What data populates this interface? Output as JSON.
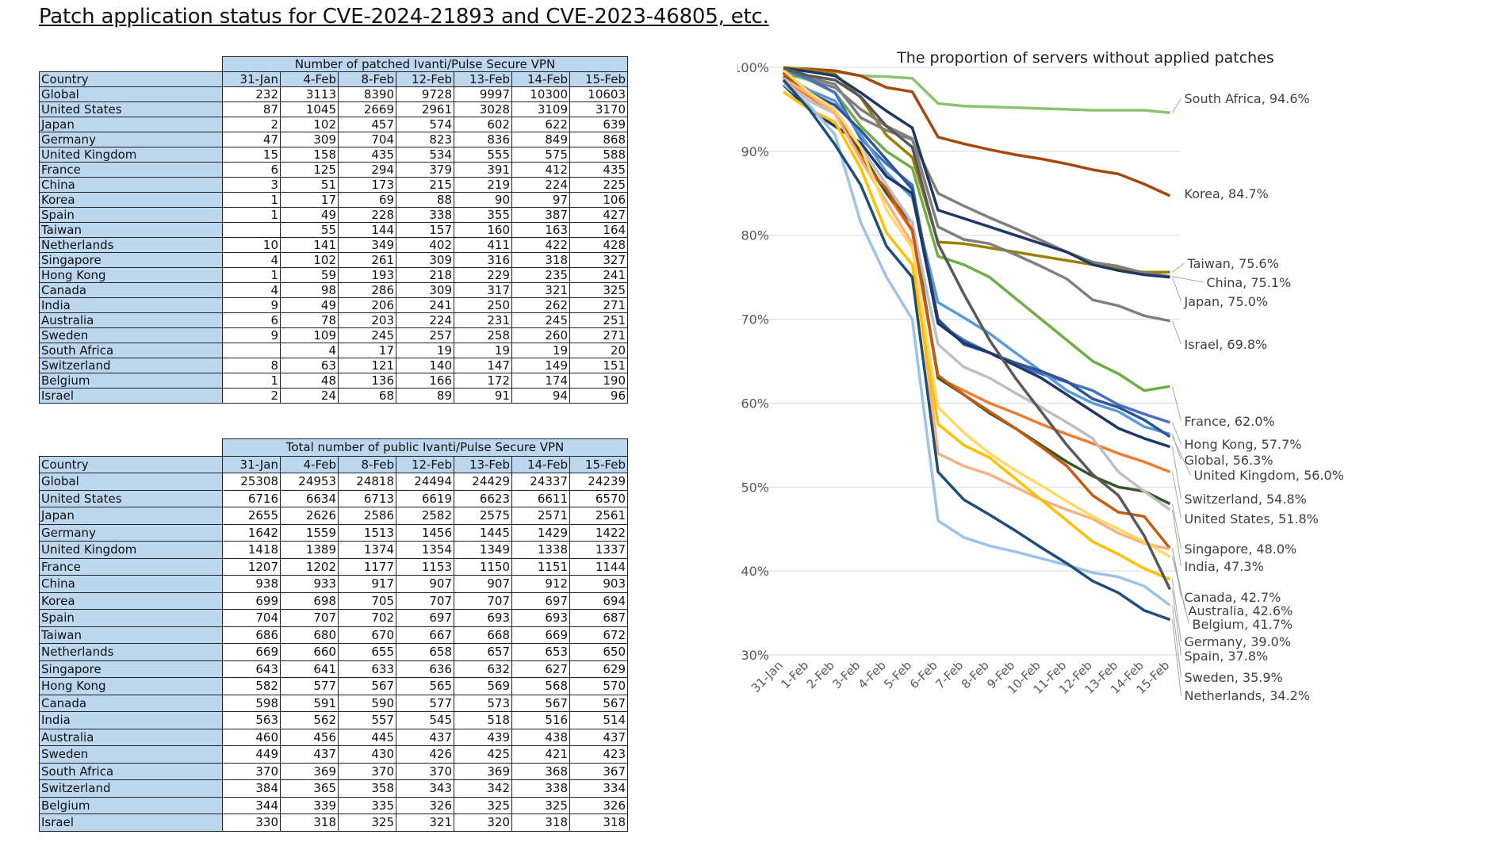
{
  "page_title": "Patch application status for CVE-2024-21893 and CVE-2023-46805, etc.",
  "tables": [
    {
      "caption": "Number of patched Ivanti/Pulse Secure VPN",
      "header": [
        "Country",
        "31-Jan",
        "4-Feb",
        "8-Feb",
        "12-Feb",
        "13-Feb",
        "14-Feb",
        "15-Feb"
      ],
      "rows": [
        [
          "Global",
          "232",
          "3113",
          "8390",
          "9728",
          "9997",
          "10300",
          "10603"
        ],
        [
          "United States",
          "87",
          "1045",
          "2669",
          "2961",
          "3028",
          "3109",
          "3170"
        ],
        [
          "Japan",
          "2",
          "102",
          "457",
          "574",
          "602",
          "622",
          "639"
        ],
        [
          "Germany",
          "47",
          "309",
          "704",
          "823",
          "836",
          "849",
          "868"
        ],
        [
          "United Kingdom",
          "15",
          "158",
          "435",
          "534",
          "555",
          "575",
          "588"
        ],
        [
          "France",
          "6",
          "125",
          "294",
          "379",
          "391",
          "412",
          "435"
        ],
        [
          "China",
          "3",
          "51",
          "173",
          "215",
          "219",
          "224",
          "225"
        ],
        [
          "Korea",
          "1",
          "17",
          "69",
          "88",
          "90",
          "97",
          "106"
        ],
        [
          "Spain",
          "1",
          "49",
          "228",
          "338",
          "355",
          "387",
          "427"
        ],
        [
          "Taiwan",
          "",
          "55",
          "144",
          "157",
          "160",
          "163",
          "164"
        ],
        [
          "Netherlands",
          "10",
          "141",
          "349",
          "402",
          "411",
          "422",
          "428"
        ],
        [
          "Singapore",
          "4",
          "102",
          "261",
          "309",
          "316",
          "318",
          "327"
        ],
        [
          "Hong Kong",
          "1",
          "59",
          "193",
          "218",
          "229",
          "235",
          "241"
        ],
        [
          "Canada",
          "4",
          "98",
          "286",
          "309",
          "317",
          "321",
          "325"
        ],
        [
          "India",
          "9",
          "49",
          "206",
          "241",
          "250",
          "262",
          "271"
        ],
        [
          "Australia",
          "6",
          "78",
          "203",
          "224",
          "231",
          "245",
          "251"
        ],
        [
          "Sweden",
          "9",
          "109",
          "245",
          "257",
          "258",
          "260",
          "271"
        ],
        [
          "South Africa",
          "",
          "4",
          "17",
          "19",
          "19",
          "19",
          "20"
        ],
        [
          "Switzerland",
          "8",
          "63",
          "121",
          "140",
          "147",
          "149",
          "151"
        ],
        [
          "Belgium",
          "1",
          "48",
          "136",
          "166",
          "172",
          "174",
          "190"
        ],
        [
          "Israel",
          "2",
          "24",
          "68",
          "89",
          "91",
          "94",
          "96"
        ]
      ]
    },
    {
      "caption": "Total number of public Ivanti/Pulse Secure VPN",
      "header": [
        "Country",
        "31-Jan",
        "4-Feb",
        "8-Feb",
        "12-Feb",
        "13-Feb",
        "14-Feb",
        "15-Feb"
      ],
      "rows": [
        [
          "Global",
          "25308",
          "24953",
          "24818",
          "24494",
          "24429",
          "24337",
          "24239"
        ],
        [
          "United States",
          "6716",
          "6634",
          "6713",
          "6619",
          "6623",
          "6611",
          "6570"
        ],
        [
          "Japan",
          "2655",
          "2626",
          "2586",
          "2582",
          "2575",
          "2571",
          "2561"
        ],
        [
          "Germany",
          "1642",
          "1559",
          "1513",
          "1456",
          "1445",
          "1429",
          "1422"
        ],
        [
          "United Kingdom",
          "1418",
          "1389",
          "1374",
          "1354",
          "1349",
          "1338",
          "1337"
        ],
        [
          "France",
          "1207",
          "1202",
          "1177",
          "1153",
          "1150",
          "1151",
          "1144"
        ],
        [
          "China",
          "938",
          "933",
          "917",
          "907",
          "907",
          "912",
          "903"
        ],
        [
          "Korea",
          "699",
          "698",
          "705",
          "707",
          "707",
          "697",
          "694"
        ],
        [
          "Spain",
          "704",
          "707",
          "702",
          "697",
          "693",
          "693",
          "687"
        ],
        [
          "Taiwan",
          "686",
          "680",
          "670",
          "667",
          "668",
          "669",
          "672"
        ],
        [
          "Netherlands",
          "669",
          "660",
          "655",
          "658",
          "657",
          "653",
          "650"
        ],
        [
          "Singapore",
          "643",
          "641",
          "633",
          "636",
          "632",
          "627",
          "629"
        ],
        [
          "Hong Kong",
          "582",
          "577",
          "567",
          "565",
          "569",
          "568",
          "570"
        ],
        [
          "Canada",
          "598",
          "591",
          "590",
          "577",
          "573",
          "567",
          "567"
        ],
        [
          "India",
          "563",
          "562",
          "557",
          "545",
          "518",
          "516",
          "514"
        ],
        [
          "Australia",
          "460",
          "456",
          "445",
          "437",
          "439",
          "438",
          "437"
        ],
        [
          "Sweden",
          "449",
          "437",
          "430",
          "426",
          "425",
          "421",
          "423"
        ],
        [
          "South Africa",
          "370",
          "369",
          "370",
          "370",
          "369",
          "368",
          "367"
        ],
        [
          "Switzerland",
          "384",
          "365",
          "358",
          "343",
          "342",
          "338",
          "334"
        ],
        [
          "Belgium",
          "344",
          "339",
          "335",
          "326",
          "325",
          "325",
          "326"
        ],
        [
          "Israel",
          "330",
          "318",
          "325",
          "321",
          "320",
          "318",
          "318"
        ]
      ]
    }
  ],
  "chart_data": {
    "type": "line",
    "title": "The proportion of servers without applied patches",
    "xlabel": "",
    "ylabel": "",
    "categories": [
      "31-Jan",
      "1-Feb",
      "2-Feb",
      "3-Feb",
      "4-Feb",
      "5-Feb",
      "6-Feb",
      "7-Feb",
      "8-Feb",
      "9-Feb",
      "10-Feb",
      "11-Feb",
      "12-Feb",
      "13-Feb",
      "14-Feb",
      "15-Feb"
    ],
    "ylim": [
      30,
      100
    ],
    "yticks": [
      "30%",
      "40%",
      "50%",
      "60%",
      "70%",
      "80%",
      "90%",
      "100%"
    ],
    "ytick_values": [
      30,
      40,
      50,
      60,
      70,
      80,
      90,
      100
    ],
    "series": [
      {
        "name": "South Africa",
        "label": "South Africa, 94.6%",
        "color": "#8dc26f",
        "values": [
          100,
          99.8,
          99.5,
          99,
          98.9,
          98.7,
          95.7,
          95.4,
          95.3,
          95.2,
          95.1,
          95,
          94.9,
          94.9,
          94.9,
          94.6
        ]
      },
      {
        "name": "Korea",
        "label": "Korea, 84.7%",
        "color": "#a6470f",
        "values": [
          99.9,
          99.8,
          99.6,
          99,
          97.6,
          97.1,
          91.7,
          90.9,
          90.2,
          89.6,
          89.1,
          88.5,
          87.8,
          87.3,
          86.1,
          84.7
        ]
      },
      {
        "name": "Taiwan",
        "label": "Taiwan, 75.6%",
        "color": "#9c7f00",
        "values": [
          100,
          99.7,
          99.2,
          96.4,
          91.9,
          89.3,
          79.2,
          79,
          78.5,
          78,
          77.5,
          77,
          76.5,
          76,
          75.6,
          75.6
        ]
      },
      {
        "name": "China",
        "label": "China, 75.1%",
        "color": "#7f7f7f",
        "values": [
          99.7,
          98.8,
          98,
          94,
          92.5,
          91.4,
          85,
          83.5,
          82.1,
          80.8,
          79.4,
          78,
          76.8,
          76.3,
          75.5,
          75.1
        ]
      },
      {
        "name": "Japan",
        "label": "Japan, 75.0%",
        "color": "#203864",
        "values": [
          99.9,
          99.5,
          99,
          97,
          94.8,
          92.8,
          83,
          82,
          81,
          80,
          79,
          78,
          76.5,
          75.8,
          75.3,
          75
        ]
      },
      {
        "name": "Israel",
        "label": "Israel, 69.8%",
        "color": "#808080",
        "values": [
          99.4,
          98.5,
          97.6,
          95,
          93,
          91.5,
          81,
          79.5,
          79,
          77.7,
          76.3,
          74.8,
          72.3,
          71.6,
          70.4,
          69.8
        ]
      },
      {
        "name": "France",
        "label": "France, 62.0%",
        "color": "#70ad47",
        "values": [
          99.5,
          98.5,
          97,
          93,
          90,
          88,
          77.5,
          76.5,
          75,
          72.5,
          70,
          67.5,
          65,
          63.5,
          61.5,
          62
        ]
      },
      {
        "name": "Hong Kong",
        "label": "Hong Kong, 57.7%",
        "color": "#4472c4",
        "values": [
          99.8,
          98.6,
          97,
          91.5,
          88.5,
          86,
          69.5,
          67.5,
          66,
          64.5,
          63.5,
          62.5,
          61.5,
          59.8,
          58.7,
          57.7
        ]
      },
      {
        "name": "Global",
        "label": "Global, 56.3%",
        "color": "#5b9bd5",
        "values": [
          99.1,
          97.3,
          96,
          92,
          87.5,
          84.5,
          72,
          70.2,
          68.3,
          66,
          63.8,
          61.5,
          60,
          59,
          57.2,
          56.3
        ]
      },
      {
        "name": "United Kingdom",
        "label": "United Kingdom, 56.0%",
        "color": "#2f5597",
        "values": [
          98.9,
          97,
          95.5,
          92.5,
          89,
          85.5,
          70,
          67,
          66,
          64.8,
          63.8,
          62.6,
          60.5,
          59.5,
          58,
          56
        ]
      },
      {
        "name": "Switzerland",
        "label": "Switzerland, 54.8%",
        "color": "#1f3864",
        "values": [
          97.9,
          95,
          93,
          91,
          87,
          85,
          69.5,
          67.2,
          66,
          64.5,
          63,
          61,
          59,
          57,
          55.8,
          54.8
        ]
      },
      {
        "name": "United States",
        "label": "United States, 51.8%",
        "color": "#ed7d31",
        "values": [
          98.7,
          96.5,
          94.5,
          89.5,
          85,
          80.5,
          63,
          61.5,
          60,
          58.8,
          57.5,
          56.3,
          55.2,
          54,
          53,
          51.8
        ]
      },
      {
        "name": "Singapore",
        "label": "Singapore, 48.0%",
        "color": "#375623",
        "values": [
          99.4,
          97,
          95,
          90,
          85,
          81.5,
          63,
          61,
          58.8,
          57,
          55,
          53,
          51.3,
          50,
          49.5,
          48
        ]
      },
      {
        "name": "India",
        "label": "India, 47.3%",
        "color": "#bfbfbf",
        "values": [
          98.4,
          96,
          94.5,
          90.5,
          86,
          81.5,
          67,
          64.3,
          63,
          61.2,
          59.5,
          57.7,
          55.8,
          51.8,
          49.5,
          47.3
        ]
      },
      {
        "name": "Canada",
        "label": "Canada, 42.7%",
        "color": "#c55a11",
        "values": [
          99.3,
          97,
          95,
          89,
          85.5,
          80.6,
          63.3,
          61,
          59,
          57,
          54.8,
          52.5,
          49,
          47,
          46.5,
          42.7
        ]
      },
      {
        "name": "Australia",
        "label": "Australia, 42.6%",
        "color": "#f4b183",
        "values": [
          98.7,
          96.8,
          94.5,
          89,
          84,
          79,
          54,
          52.5,
          51.5,
          50,
          48.5,
          47.3,
          46.2,
          44.5,
          43.3,
          42.6
        ]
      },
      {
        "name": "Belgium",
        "label": "Belgium, 41.7%",
        "color": "#ffd966",
        "values": [
          99.7,
          97,
          95,
          90.5,
          83,
          78.5,
          59.5,
          56.5,
          54,
          52,
          50.2,
          48.3,
          46.5,
          45,
          43.5,
          41.7
        ]
      },
      {
        "name": "Germany",
        "label": "Germany, 39.0%",
        "color": "#ffc000",
        "values": [
          97.1,
          95,
          93.5,
          88,
          80.3,
          76.5,
          57.5,
          55,
          53.5,
          51,
          48.5,
          46,
          43.5,
          42,
          40.3,
          39
        ]
      },
      {
        "name": "Spain",
        "label": "Spain, 37.8%",
        "color": "#595959",
        "values": [
          99.9,
          99,
          98.5,
          96.5,
          93,
          90.5,
          79,
          73,
          67.5,
          63,
          59,
          55,
          51.5,
          49,
          44.2,
          37.8
        ]
      },
      {
        "name": "Sweden",
        "label": "Sweden, 35.9%",
        "color": "#9dc3e6",
        "values": [
          98,
          95.5,
          92,
          81.5,
          75,
          70,
          46,
          44,
          43,
          42.3,
          41.5,
          40.7,
          39.8,
          39.3,
          38.2,
          35.9
        ]
      },
      {
        "name": "Netherlands",
        "label": "Netherlands, 34.2%",
        "color": "#1f4e79",
        "values": [
          98.5,
          95,
          90.8,
          86,
          78.7,
          75,
          51.8,
          48.5,
          46.7,
          44.8,
          42.8,
          40.9,
          38.8,
          37.4,
          35.3,
          34.2
        ]
      }
    ]
  }
}
